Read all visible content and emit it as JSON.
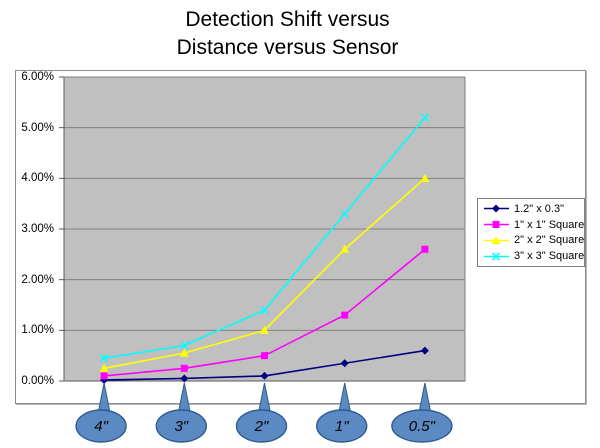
{
  "title": {
    "line1": "Detection Shift versus",
    "line2": "Distance versus Sensor"
  },
  "chart_data": {
    "type": "line",
    "title": "Detection Shift versus Distance versus Sensor",
    "xlabel": "",
    "ylabel": "",
    "categories": [
      "4\"",
      "3\"",
      "2\"",
      "1\"",
      "0.5\""
    ],
    "series": [
      {
        "name": "1.2\" x 0.3\"",
        "color": "#000080",
        "marker": "diamond",
        "values": [
          0.02,
          0.05,
          0.1,
          0.35,
          0.6
        ]
      },
      {
        "name": "1\" x 1\" Square",
        "color": "#ff00ff",
        "marker": "square",
        "values": [
          0.1,
          0.25,
          0.5,
          1.3,
          2.6
        ]
      },
      {
        "name": "2\" x 2\" Square",
        "color": "#ffff00",
        "marker": "triangle",
        "values": [
          0.25,
          0.55,
          1.0,
          2.6,
          4.0
        ]
      },
      {
        "name": "3\" x 3\" Square",
        "color": "#00ffff",
        "marker": "x",
        "values": [
          0.45,
          0.7,
          1.4,
          3.3,
          5.2
        ]
      }
    ],
    "y_ticks": [
      "6.00%",
      "5.00%",
      "4.00%",
      "3.00%",
      "2.00%",
      "1.00%",
      "0.00%"
    ],
    "ylim": [
      0,
      6
    ],
    "grid": "horizontal-major-1pct",
    "legend_position": "right",
    "colors": {
      "plot_background": "#c0c0c0",
      "gridline": "#808080",
      "axis": "#5a5a5a",
      "chart_border": "#8c8c8c",
      "legend_border": "#808080"
    }
  },
  "x_callouts": {
    "labels": [
      "4\"",
      "3\"",
      "2\"",
      "1\"",
      "0.5\""
    ],
    "fill": "#5b8ac2",
    "border": "#2f5b8f",
    "text_color": "#000000"
  }
}
